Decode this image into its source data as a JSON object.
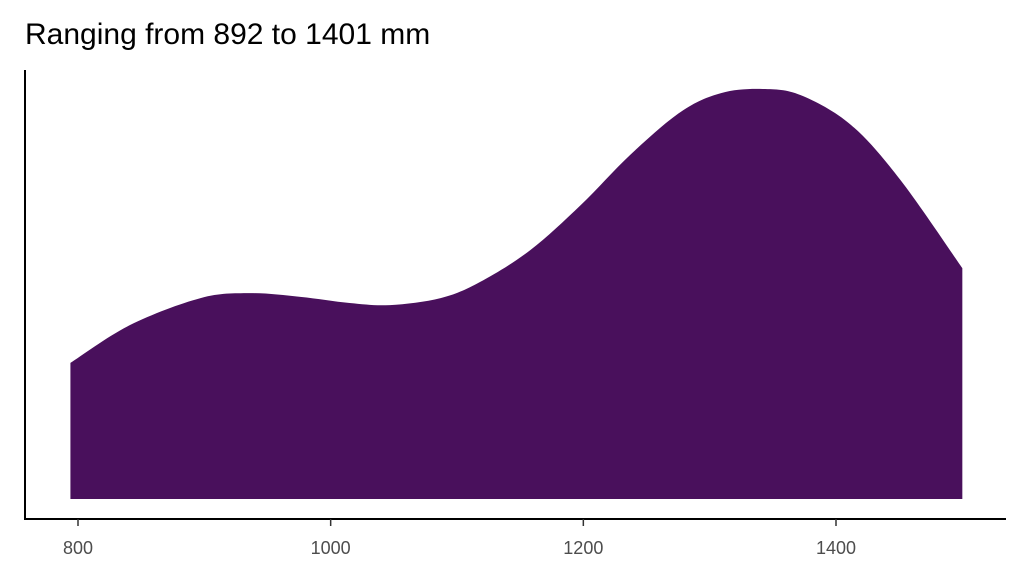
{
  "chart_data": {
    "type": "area",
    "title": "Ranging from 892 to 1401 mm",
    "xlabel": "",
    "ylabel": "",
    "xlim": [
      775,
      1560
    ],
    "ylim": [
      0,
      1.0
    ],
    "x_ticks": [
      800,
      1000,
      1200,
      1400
    ],
    "x_tick_labels": [
      "800",
      "1000",
      "1200",
      "1400"
    ],
    "y_ticks_shown": false,
    "grid": false,
    "fill_color": "#49105C",
    "series": [
      {
        "x": [
          794,
          841,
          897,
          936,
          976,
          1015,
          1047,
          1087,
          1118,
          1158,
          1198,
          1237,
          1277,
          1309,
          1342,
          1372,
          1412,
          1451,
          1500
        ],
        "y": [
          0.332,
          0.424,
          0.49,
          0.502,
          0.493,
          0.478,
          0.473,
          0.49,
          0.529,
          0.607,
          0.717,
          0.839,
          0.944,
          0.99,
          1.0,
          0.985,
          0.912,
          0.778,
          0.563
        ]
      }
    ]
  }
}
